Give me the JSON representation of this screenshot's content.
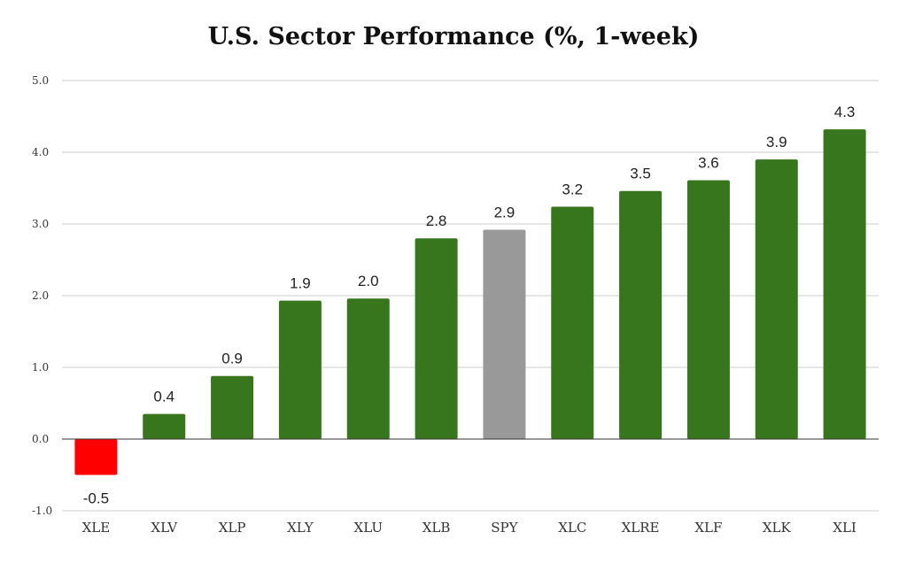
{
  "chart_data": {
    "type": "bar",
    "title": "U.S. Sector Performance (%, 1-week)",
    "xlabel": "",
    "ylabel": "",
    "categories": [
      "XLE",
      "XLV",
      "XLP",
      "XLY",
      "XLU",
      "XLB",
      "SPY",
      "XLC",
      "XLRE",
      "XLF",
      "XLK",
      "XLI"
    ],
    "values": [
      -0.5,
      0.35,
      0.88,
      1.93,
      1.96,
      2.8,
      2.92,
      3.24,
      3.46,
      3.61,
      3.9,
      4.32
    ],
    "data_labels": [
      "-0.5",
      "0.4",
      "0.9",
      "1.9",
      "2.0",
      "2.8",
      "2.9",
      "3.2",
      "3.5",
      "3.6",
      "3.9",
      "4.3"
    ],
    "bar_colors": [
      "#ff0000",
      "#38761d",
      "#38761d",
      "#38761d",
      "#38761d",
      "#38761d",
      "#999999",
      "#38761d",
      "#38761d",
      "#38761d",
      "#38761d",
      "#38761d"
    ],
    "ylim": [
      -1.0,
      5.0
    ],
    "yticks": [
      "-1.0",
      "0.0",
      "1.0",
      "2.0",
      "3.0",
      "4.0",
      "5.0"
    ],
    "grid": true,
    "legend": "none"
  }
}
